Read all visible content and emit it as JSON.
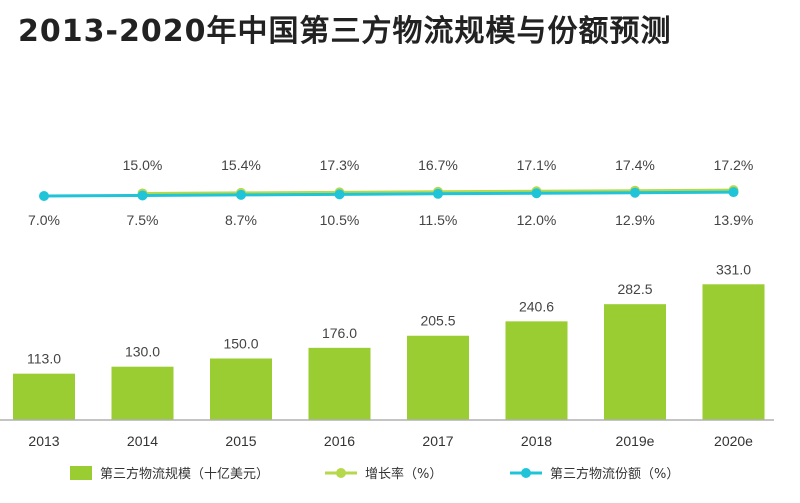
{
  "chart_data": {
    "type": "bar",
    "title": "2013-2020年中国第三方物流规模与份额预测",
    "categories": [
      "2013",
      "2014",
      "2015",
      "2016",
      "2017",
      "2018",
      "2019e",
      "2020e"
    ],
    "series": [
      {
        "name": "第三方物流规模（十亿美元）",
        "type": "bar",
        "values": [
          113.0,
          130.0,
          150.0,
          176.0,
          205.5,
          240.6,
          282.5,
          331.0
        ],
        "labels": [
          "113.0",
          "130.0",
          "150.0",
          "176.0",
          "205.5",
          "240.6",
          "282.5",
          "331.0"
        ]
      },
      {
        "name": "增长率（%）",
        "type": "line",
        "values": [
          null,
          15.0,
          15.4,
          17.3,
          16.7,
          17.1,
          17.4,
          17.2
        ],
        "labels": [
          "",
          "15.0%",
          "15.4%",
          "17.3%",
          "16.7%",
          "17.1%",
          "17.4%",
          "17.2%"
        ]
      },
      {
        "name": "第三方物流份额（%）",
        "type": "line",
        "values": [
          7.0,
          7.5,
          8.7,
          10.5,
          11.5,
          12.0,
          12.9,
          13.9
        ],
        "labels": [
          "7.0%",
          "7.5%",
          "8.7%",
          "10.5%",
          "11.5%",
          "12.0%",
          "12.9%",
          "13.9%"
        ]
      }
    ],
    "colors": {
      "bar": "#9ACD32",
      "growth_line": "#B5D94A",
      "share_line": "#20C4D8",
      "axis": "#B0B0B0"
    },
    "legend_position": "bottom",
    "grid": false
  }
}
